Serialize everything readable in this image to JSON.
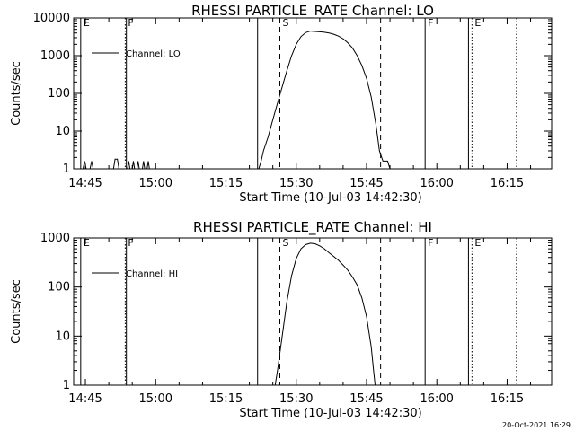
{
  "chart_data": [
    {
      "type": "line",
      "title": "RHESSI PARTICLE_RATE Channel: LO",
      "xlabel": "Start Time (10-Jul-03 14:42:30)",
      "ylabel": "Counts/sec",
      "y_scale": "log",
      "ylim": [
        1,
        10000
      ],
      "y_ticks": [
        "1",
        "10",
        "100",
        "1000",
        "10000"
      ],
      "xlim": [
        "14:42:30",
        "16:24:30"
      ],
      "x_ticks": [
        "14:45",
        "15:00",
        "15:15",
        "15:30",
        "15:45",
        "16:00",
        "16:15"
      ],
      "legend": {
        "label": "Channel: LO",
        "position": "top-left"
      },
      "series": [
        {
          "name": "Channel: LO",
          "color": "#000000",
          "points": [
            [
              "14:42:30",
              1
            ],
            [
              "14:44:30",
              1
            ],
            [
              "14:44:50",
              1.6
            ],
            [
              "14:45:10",
              1
            ],
            [
              "14:46:00",
              1
            ],
            [
              "14:46:20",
              1.6
            ],
            [
              "14:46:40",
              1
            ],
            [
              "14:51:00",
              1
            ],
            [
              "14:51:20",
              1.8
            ],
            [
              "14:51:50",
              1.8
            ],
            [
              "14:52:10",
              1
            ],
            [
              "14:54:00",
              1
            ],
            [
              "14:54:15",
              1.6
            ],
            [
              "14:54:30",
              1
            ],
            [
              "14:55:00",
              1
            ],
            [
              "14:55:15",
              1.6
            ],
            [
              "14:55:30",
              1
            ],
            [
              "14:56:00",
              1
            ],
            [
              "14:56:15",
              1.6
            ],
            [
              "14:56:30",
              1
            ],
            [
              "14:57:10",
              1
            ],
            [
              "14:57:25",
              1.6
            ],
            [
              "14:57:40",
              1
            ],
            [
              "14:58:10",
              1
            ],
            [
              "14:58:25",
              1.6
            ],
            [
              "14:58:40",
              1
            ],
            [
              "15:22:00",
              1
            ],
            [
              "15:22:30",
              1.6
            ],
            [
              "15:23:00",
              3
            ],
            [
              "15:24:00",
              7
            ],
            [
              "15:25:00",
              20
            ],
            [
              "15:26:00",
              55
            ],
            [
              "15:27:00",
              150
            ],
            [
              "15:28:00",
              400
            ],
            [
              "15:29:00",
              1000
            ],
            [
              "15:30:00",
              2000
            ],
            [
              "15:31:00",
              3200
            ],
            [
              "15:32:00",
              4100
            ],
            [
              "15:33:00",
              4500
            ],
            [
              "15:34:00",
              4400
            ],
            [
              "15:35:00",
              4300
            ],
            [
              "15:36:00",
              4200
            ],
            [
              "15:37:00",
              4000
            ],
            [
              "15:38:00",
              3700
            ],
            [
              "15:39:00",
              3300
            ],
            [
              "15:40:00",
              2800
            ],
            [
              "15:41:00",
              2200
            ],
            [
              "15:42:00",
              1600
            ],
            [
              "15:43:00",
              1000
            ],
            [
              "15:44:00",
              550
            ],
            [
              "15:45:00",
              250
            ],
            [
              "15:46:00",
              80
            ],
            [
              "15:47:00",
              15
            ],
            [
              "15:47:45",
              3
            ],
            [
              "15:48:30",
              1.6
            ],
            [
              "15:49:30",
              1.6
            ],
            [
              "15:50:00",
              1
            ],
            [
              "16:24:30",
              1
            ]
          ]
        }
      ],
      "vertical_markers": [
        {
          "time": "14:44:00",
          "label": "E",
          "style": "solid"
        },
        {
          "time": "14:53:30",
          "label": "F",
          "style": "dotted"
        },
        {
          "time": "14:53:45",
          "label": "",
          "style": "solid"
        },
        {
          "time": "15:21:45",
          "label": "",
          "style": "solid"
        },
        {
          "time": "15:26:30",
          "label": "S",
          "style": "dashed"
        },
        {
          "time": "15:48:00",
          "label": "",
          "style": "dashed"
        },
        {
          "time": "15:57:30",
          "label": "F",
          "style": "solid"
        },
        {
          "time": "16:06:45",
          "label": "",
          "style": "solid"
        },
        {
          "time": "16:07:30",
          "label": "E",
          "style": "dotted"
        },
        {
          "time": "16:17:00",
          "label": "",
          "style": "dotted"
        }
      ]
    },
    {
      "type": "line",
      "title": "RHESSI PARTICLE_RATE Channel: HI",
      "xlabel": "Start Time (10-Jul-03 14:42:30)",
      "ylabel": "Counts/sec",
      "y_scale": "log",
      "ylim": [
        1,
        1000
      ],
      "y_ticks": [
        "1",
        "10",
        "100",
        "1000"
      ],
      "xlim": [
        "14:42:30",
        "16:24:30"
      ],
      "x_ticks": [
        "14:45",
        "15:00",
        "15:15",
        "15:30",
        "15:45",
        "16:00",
        "16:15"
      ],
      "legend": {
        "label": "Channel: HI",
        "position": "top-left"
      },
      "series": [
        {
          "name": "Channel: HI",
          "color": "#000000",
          "points": [
            [
              "14:42:30",
              1
            ],
            [
              "15:25:30",
              1
            ],
            [
              "15:26:00",
              2
            ],
            [
              "15:27:00",
              10
            ],
            [
              "15:28:00",
              50
            ],
            [
              "15:29:00",
              170
            ],
            [
              "15:30:00",
              380
            ],
            [
              "15:31:00",
              600
            ],
            [
              "15:32:00",
              730
            ],
            [
              "15:33:00",
              780
            ],
            [
              "15:34:00",
              760
            ],
            [
              "15:35:00",
              690
            ],
            [
              "15:36:00",
              600
            ],
            [
              "15:37:00",
              500
            ],
            [
              "15:38:00",
              420
            ],
            [
              "15:39:00",
              350
            ],
            [
              "15:40:00",
              280
            ],
            [
              "15:41:00",
              220
            ],
            [
              "15:42:00",
              160
            ],
            [
              "15:43:00",
              110
            ],
            [
              "15:44:00",
              60
            ],
            [
              "15:45:00",
              25
            ],
            [
              "15:46:00",
              6
            ],
            [
              "15:46:30",
              2
            ],
            [
              "15:46:50",
              1
            ],
            [
              "16:24:30",
              1
            ]
          ]
        }
      ],
      "vertical_markers": [
        {
          "time": "14:44:00",
          "label": "E",
          "style": "solid"
        },
        {
          "time": "14:53:30",
          "label": "F",
          "style": "dotted"
        },
        {
          "time": "14:53:45",
          "label": "",
          "style": "solid"
        },
        {
          "time": "15:21:45",
          "label": "",
          "style": "solid"
        },
        {
          "time": "15:26:30",
          "label": "S",
          "style": "dashed"
        },
        {
          "time": "15:48:00",
          "label": "",
          "style": "dashed"
        },
        {
          "time": "15:57:30",
          "label": "F",
          "style": "solid"
        },
        {
          "time": "16:06:45",
          "label": "",
          "style": "solid"
        },
        {
          "time": "16:07:30",
          "label": "E",
          "style": "dotted"
        },
        {
          "time": "16:17:00",
          "label": "",
          "style": "dotted"
        }
      ]
    }
  ],
  "footer": {
    "timestamp": "20-Oct-2021 16:29"
  }
}
